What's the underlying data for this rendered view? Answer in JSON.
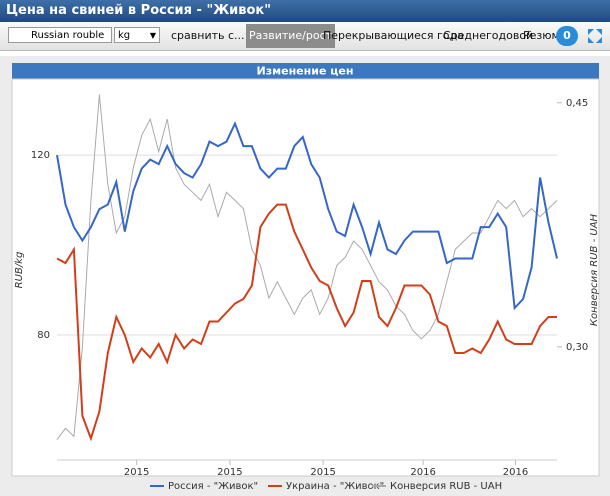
{
  "ui": {
    "title": "Цена на свиней в Россия - \"Живок\"",
    "currency": "Russian rouble",
    "unit": "kg",
    "compare": "сравнить с...",
    "tabs": [
      "Развитие/рост",
      "Перекрывающиеся года",
      "Среднегодовой",
      "Резюме"
    ],
    "badge": 0
  },
  "chart_data": {
    "type": "line",
    "title": "Изменение цен",
    "y_label": "RUB/kg",
    "y2_label": "Конверсия RUB - UAH",
    "x": [
      0,
      1,
      2,
      3,
      4,
      5,
      6,
      7,
      8,
      9,
      10,
      11,
      12,
      13,
      14,
      15,
      16,
      17,
      18,
      19,
      20,
      21,
      22,
      23,
      24,
      25,
      26,
      27,
      28,
      29,
      30,
      31,
      32,
      33,
      34,
      35,
      36,
      37,
      38,
      39,
      40,
      41,
      42,
      43,
      44,
      45,
      46,
      47,
      48,
      49,
      50,
      51,
      52,
      53,
      54,
      55,
      56,
      57,
      58,
      59
    ],
    "xlim": [
      0,
      59
    ],
    "xticks": [
      {
        "value": 9.4,
        "label": "2015"
      },
      {
        "value": 20.4,
        "label": "2015"
      },
      {
        "value": 31.4,
        "label": "2015"
      },
      {
        "value": 43.2,
        "label": "2016"
      },
      {
        "value": 54.1,
        "label": "2016"
      }
    ],
    "ylim": [
      52.2,
      136.7
    ],
    "yticks": [
      80,
      120
    ],
    "y2lim": [
      0.2305,
      0.464
    ],
    "y2ticks": [
      {
        "value": 0.3,
        "label": "0,30"
      },
      {
        "value": 0.45,
        "label": "0,45"
      }
    ],
    "grid": true,
    "series": [
      {
        "name": "Россия - \"Живок\"",
        "color": "#3567c8",
        "values": [
          120,
          109,
          104,
          101,
          104,
          108,
          109,
          114,
          103,
          112,
          117,
          119,
          118,
          122,
          118,
          116,
          115,
          118,
          123,
          122,
          123,
          127,
          122,
          122,
          117,
          115,
          117,
          117,
          122,
          124,
          118,
          115,
          108,
          103,
          102,
          109,
          104,
          98,
          105,
          99,
          98,
          101,
          103,
          103,
          103,
          103,
          96,
          97,
          97,
          97,
          104,
          104,
          107,
          104,
          86,
          88,
          95,
          115,
          105,
          97
        ]
      },
      {
        "name": "Украина - \"Живок\"",
        "color": "#d23e1a",
        "values": [
          97,
          96,
          99,
          62,
          57,
          63,
          76,
          84,
          80,
          74,
          77,
          75,
          78,
          74,
          80,
          77,
          79,
          78,
          83,
          83,
          85,
          87,
          88,
          91,
          104,
          107,
          109,
          109,
          103,
          99,
          95,
          92,
          91,
          86,
          82,
          85,
          92,
          92,
          84,
          82,
          86,
          91,
          91,
          91,
          89,
          83,
          82,
          76,
          76,
          77,
          76,
          79,
          83,
          79,
          78,
          78,
          78,
          82,
          84,
          84
        ]
      },
      {
        "name": "Конверсия RUB - UAH",
        "color": "#aaaaaa",
        "axis": "y2",
        "values": [
          0.243,
          0.25,
          0.245,
          0.3,
          0.39,
          0.455,
          0.4,
          0.37,
          0.38,
          0.41,
          0.43,
          0.44,
          0.42,
          0.44,
          0.41,
          0.4,
          0.395,
          0.39,
          0.4,
          0.38,
          0.395,
          0.39,
          0.385,
          0.36,
          0.35,
          0.33,
          0.34,
          0.33,
          0.32,
          0.33,
          0.335,
          0.32,
          0.33,
          0.35,
          0.355,
          0.365,
          0.36,
          0.35,
          0.34,
          0.335,
          0.325,
          0.32,
          0.31,
          0.305,
          0.31,
          0.32,
          0.34,
          0.36,
          0.365,
          0.37,
          0.37,
          0.38,
          0.39,
          0.385,
          0.39,
          0.38,
          0.385,
          0.38,
          0.385,
          0.39
        ]
      }
    ]
  }
}
